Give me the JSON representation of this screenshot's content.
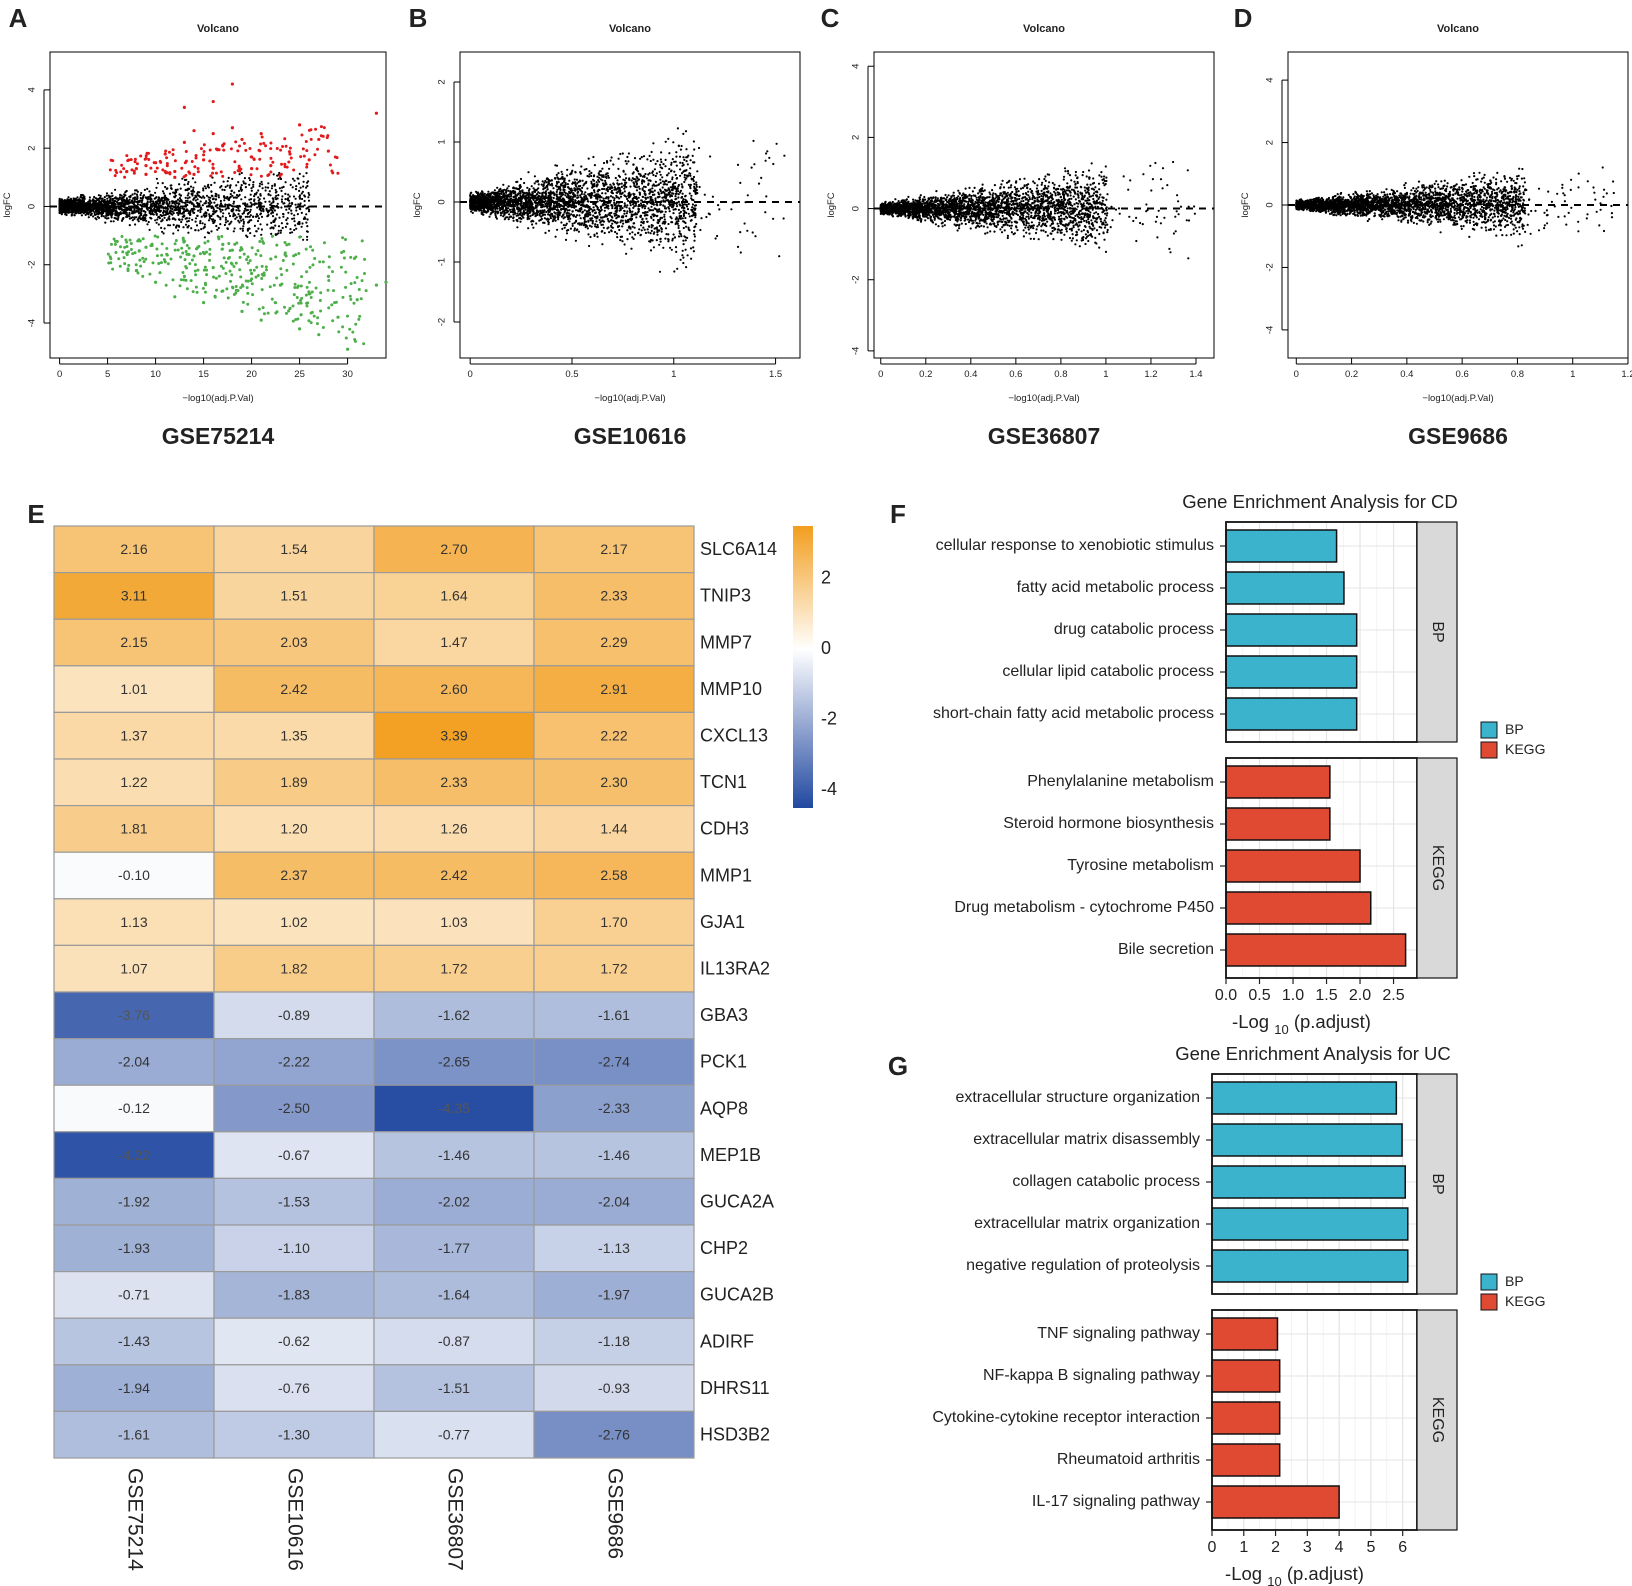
{
  "panel_letters": [
    "A",
    "B",
    "C",
    "D",
    "E",
    "F",
    "G"
  ],
  "colors": {
    "up": "#e31a1c",
    "down": "#4daf4a",
    "ns": "#000000",
    "bp": "#3bb3cc",
    "kegg": "#e04a33",
    "heat_low": "#2148a0",
    "heat_mid": "#ffffff",
    "heat_high": "#f29e1e",
    "strip": "#d9d9d9"
  },
  "chart_data": [
    {
      "type": "scatter",
      "id": "A",
      "dataset": "GSE75214",
      "title": "Volcano",
      "xlabel": "−log10(adj.P.Val)",
      "ylabel": "logFC",
      "xlim": [
        -1,
        34
      ],
      "ylim": [
        -5.2,
        5.3
      ],
      "xticks": [
        0,
        5,
        10,
        15,
        20,
        25,
        30
      ],
      "yticks": [
        -4,
        -2,
        0,
        2,
        4
      ],
      "reference_line": 0,
      "up_points": [
        [
          7,
          1.2
        ],
        [
          8,
          1.3
        ],
        [
          9,
          1.1
        ],
        [
          10,
          1.5
        ],
        [
          11,
          1.8
        ],
        [
          12,
          1.2
        ],
        [
          13,
          3.4
        ],
        [
          14,
          2.6
        ],
        [
          15,
          1.6
        ],
        [
          16,
          2.5
        ],
        [
          17,
          2.1
        ],
        [
          18,
          4.2
        ],
        [
          19,
          2.3
        ],
        [
          20,
          1.7
        ],
        [
          21,
          2.5
        ],
        [
          22,
          1.4
        ],
        [
          24,
          1.8
        ],
        [
          25,
          2.8
        ],
        [
          26,
          1.6
        ],
        [
          27,
          2.3
        ],
        [
          28,
          1.9
        ],
        [
          33,
          3.2
        ],
        [
          12,
          1.0
        ],
        [
          16,
          3.6
        ],
        [
          18,
          2.7
        ],
        [
          20,
          1.3
        ],
        [
          13,
          2.2
        ],
        [
          14,
          1.1
        ],
        [
          9,
          1.4
        ],
        [
          11,
          1.2
        ]
      ],
      "down_points": [
        [
          6,
          -1.2
        ],
        [
          7,
          -1.6
        ],
        [
          8,
          -2.2
        ],
        [
          9,
          -1.4
        ],
        [
          10,
          -2.6
        ],
        [
          11,
          -1.9
        ],
        [
          12,
          -3.1
        ],
        [
          13,
          -2.4
        ],
        [
          14,
          -1.7
        ],
        [
          15,
          -3.3
        ],
        [
          16,
          -2.1
        ],
        [
          17,
          -2.9
        ],
        [
          18,
          -1.5
        ],
        [
          19,
          -3.6
        ],
        [
          20,
          -2.3
        ],
        [
          21,
          -3.9
        ],
        [
          22,
          -1.8
        ],
        [
          23,
          -2.7
        ],
        [
          24,
          -3.5
        ],
        [
          25,
          -4.2
        ],
        [
          26,
          -3.0
        ],
        [
          27,
          -4.4
        ],
        [
          28,
          -2.4
        ],
        [
          29,
          -3.8
        ],
        [
          30,
          -4.9
        ],
        [
          31,
          -3.2
        ],
        [
          33,
          -2.7
        ],
        [
          34,
          -2.6
        ],
        [
          13,
          -1.2
        ],
        [
          17,
          -1.3
        ]
      ]
    },
    {
      "type": "scatter",
      "id": "B",
      "dataset": "GSE10616",
      "title": "Volcano",
      "xlabel": "−log10(adj.P.Val)",
      "ylabel": "logFC",
      "xlim": [
        -0.05,
        1.62
      ],
      "ylim": [
        -2.6,
        2.5
      ],
      "xticks": [
        0.0,
        0.5,
        1.0,
        1.5
      ],
      "yticks": [
        -2,
        -1,
        0,
        1,
        2
      ],
      "reference_line": 0,
      "spread_max": 1.55
    },
    {
      "type": "scatter",
      "id": "C",
      "dataset": "GSE36807",
      "title": "Volcano",
      "xlabel": "−log10(adj.P.Val)",
      "ylabel": "logFC",
      "xlim": [
        -0.03,
        1.48
      ],
      "ylim": [
        -4.2,
        4.4
      ],
      "xticks": [
        0.0,
        0.2,
        0.4,
        0.6,
        0.8,
        1.0,
        1.2,
        1.4
      ],
      "yticks": [
        -4,
        -2,
        0,
        2,
        4
      ],
      "reference_line": 0,
      "spread_max": 1.4
    },
    {
      "type": "scatter",
      "id": "D",
      "dataset": "GSE9686",
      "title": "Volcano",
      "xlabel": "−log10(adj.P.Val)",
      "ylabel": "logFC",
      "xlim": [
        -0.03,
        1.2
      ],
      "ylim": [
        -4.9,
        4.9
      ],
      "xticks": [
        0.0,
        0.2,
        0.4,
        0.6,
        0.8,
        1.0,
        1.2
      ],
      "yticks": [
        -4,
        -2,
        0,
        2,
        4
      ],
      "reference_line": 0,
      "spread_max": 1.15
    },
    {
      "type": "heatmap",
      "id": "E",
      "columns": [
        "GSE75214",
        "GSE10616",
        "GSE36807",
        "GSE9686"
      ],
      "rows": [
        "SLC6A14",
        "TNIP3",
        "MMP7",
        "MMP10",
        "CXCL13",
        "TCN1",
        "CDH3",
        "MMP1",
        "GJA1",
        "IL13RA2",
        "GBA3",
        "PCK1",
        "AQP8",
        "MEP1B",
        "GUCA2A",
        "CHP2",
        "GUCA2B",
        "ADIRF",
        "DHRS11",
        "HSD3B2"
      ],
      "values": [
        [
          2.16,
          1.54,
          2.7,
          2.17
        ],
        [
          3.11,
          1.51,
          1.64,
          2.33
        ],
        [
          2.15,
          2.03,
          1.47,
          2.29
        ],
        [
          1.01,
          2.42,
          2.6,
          2.91
        ],
        [
          1.37,
          1.35,
          3.39,
          2.22
        ],
        [
          1.22,
          1.89,
          2.33,
          2.3
        ],
        [
          1.81,
          1.2,
          1.26,
          1.44
        ],
        [
          -0.1,
          2.37,
          2.42,
          2.58
        ],
        [
          1.13,
          1.02,
          1.03,
          1.7
        ],
        [
          1.07,
          1.82,
          1.72,
          1.72
        ],
        [
          -3.76,
          -0.89,
          -1.62,
          -1.61
        ],
        [
          -2.04,
          -2.22,
          -2.65,
          -2.74
        ],
        [
          -0.12,
          -2.5,
          -4.35,
          -2.33
        ],
        [
          -4.22,
          -0.67,
          -1.46,
          -1.46
        ],
        [
          -1.92,
          -1.53,
          -2.02,
          -2.04
        ],
        [
          -1.93,
          -1.1,
          -1.77,
          -1.13
        ],
        [
          -0.71,
          -1.83,
          -1.64,
          -1.97
        ],
        [
          -1.43,
          -0.62,
          -0.87,
          -1.18
        ],
        [
          -1.94,
          -0.76,
          -1.51,
          -0.93
        ],
        [
          -1.61,
          -1.3,
          -0.77,
          -2.76
        ]
      ],
      "labels": [
        [
          "2.16",
          "1.54",
          "2.70",
          "2.17"
        ],
        [
          "3.11",
          "1.51",
          "1.64",
          "2.33"
        ],
        [
          "2.15",
          "2.03",
          "1.47",
          "2.29"
        ],
        [
          "1.01",
          "2.42",
          "2.60",
          "2.91"
        ],
        [
          "1.37",
          "1.35",
          "3.39",
          "2.22"
        ],
        [
          "1.22",
          "1.89",
          "2.33",
          "2.30"
        ],
        [
          "1.81",
          "1.20",
          "1.26",
          "1.44"
        ],
        [
          "-0.10",
          "2.37",
          "2.42",
          "2.58"
        ],
        [
          "1.13",
          "1.02",
          "1.03",
          "1.70"
        ],
        [
          "1.07",
          "1.82",
          "1.72",
          "1.72"
        ],
        [
          "-3.76",
          "-0.89",
          "-1.62",
          "-1.61"
        ],
        [
          "-2.04",
          "-2.22",
          "-2.65",
          "-2.74"
        ],
        [
          "-0.12",
          "-2.50",
          "-4.35",
          "-2.33"
        ],
        [
          "-4.22",
          "-0.67",
          "-1.46",
          "-1.46"
        ],
        [
          "-1.92",
          "-1.53",
          "-2.02",
          "-2.04"
        ],
        [
          "-1.93",
          "-1.10",
          "-1.77",
          "-1.13"
        ],
        [
          "-0.71",
          "-1.83",
          "-1.64",
          "-1.97"
        ],
        [
          "-1.43",
          "-0.62",
          "-0.87",
          "-1.18"
        ],
        [
          "-1.94",
          "-0.76",
          "-1.51",
          "-0.93"
        ],
        [
          "-1.61",
          "-1.30",
          "-0.77",
          "-2.76"
        ]
      ],
      "colorbar": {
        "min": -4.5,
        "max": 3.5,
        "ticks": [
          2,
          0,
          -2,
          -4
        ],
        "tick_labels": [
          "2",
          "0",
          "-2",
          "-4"
        ]
      }
    },
    {
      "type": "bar",
      "id": "F",
      "orientation": "horizontal",
      "title": "Gene Enrichment Analysis for CD",
      "xlabel_main": "-Log ",
      "xlabel_sub": "10",
      "xlabel_tail": " (p.adjust)",
      "xlim": [
        0,
        2.85
      ],
      "xticks": [
        0.0,
        0.5,
        1.0,
        1.5,
        2.0,
        2.5
      ],
      "xtick_labels": [
        "0.0",
        "0.5",
        "1.0",
        "1.5",
        "2.0",
        "2.5"
      ],
      "legend": [
        "BP",
        "KEGG"
      ],
      "groups": [
        {
          "name": "BP",
          "categories": [
            "cellular response to xenobiotic stimulus",
            "fatty acid metabolic process",
            "drug catabolic process",
            "cellular lipid catabolic process",
            "short-chain fatty acid metabolic process"
          ],
          "values": [
            1.65,
            1.76,
            1.95,
            1.95,
            1.95
          ]
        },
        {
          "name": "KEGG",
          "categories": [
            "Phenylalanine metabolism",
            "Steroid hormone biosynthesis",
            "Tyrosine metabolism",
            "Drug metabolism - cytochrome P450",
            "Bile secretion"
          ],
          "values": [
            1.55,
            1.55,
            2.0,
            2.16,
            2.68
          ]
        }
      ]
    },
    {
      "type": "bar",
      "id": "G",
      "orientation": "horizontal",
      "title": "Gene Enrichment Analysis for UC",
      "xlabel_main": "-Log ",
      "xlabel_sub": "10",
      "xlabel_tail": " (p.adjust)",
      "xlim": [
        0,
        6.45
      ],
      "xticks": [
        0,
        1,
        2,
        3,
        4,
        5,
        6
      ],
      "xtick_labels": [
        "0",
        "1",
        "2",
        "3",
        "4",
        "5",
        "6"
      ],
      "legend": [
        "BP",
        "KEGG"
      ],
      "groups": [
        {
          "name": "BP",
          "categories": [
            "extracellular structure organization",
            "extracellular matrix disassembly",
            "collagen catabolic process",
            "extracellular matrix organization",
            "negative regulation of proteolysis"
          ],
          "values": [
            5.8,
            5.98,
            6.08,
            6.16,
            6.16
          ]
        },
        {
          "name": "KEGG",
          "categories": [
            "TNF signaling pathway",
            "NF-kappa B signaling pathway",
            "Cytokine-cytokine receptor interaction",
            "Rheumatoid arthritis",
            "IL-17 signaling pathway"
          ],
          "values": [
            2.06,
            2.13,
            2.13,
            2.13,
            4.0
          ]
        }
      ]
    }
  ]
}
